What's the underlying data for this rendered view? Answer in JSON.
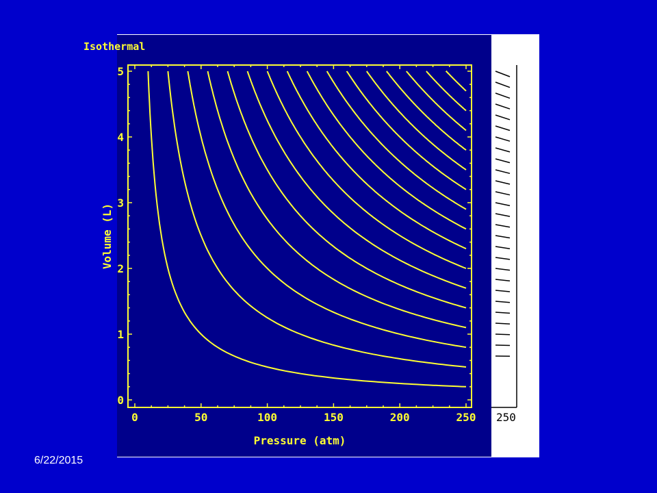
{
  "slide": {
    "date": "6/22/2015",
    "background_color": "#0000cc"
  },
  "chart_data": {
    "type": "line",
    "title": "Isothermal",
    "xlabel": "Pressure (atm)",
    "ylabel": "Volume (L)",
    "xlim": [
      0,
      250
    ],
    "ylim": [
      0,
      5
    ],
    "x_ticks": [
      "0",
      "50",
      "100",
      "150",
      "200",
      "250"
    ],
    "y_ticks": [
      "0",
      "1",
      "2",
      "3",
      "4",
      "5"
    ],
    "side_panel_tick": "250",
    "relation": "P × V = constant",
    "series": [
      {
        "pv_constant": 50
      },
      {
        "pv_constant": 125
      },
      {
        "pv_constant": 200
      },
      {
        "pv_constant": 275
      },
      {
        "pv_constant": 350
      },
      {
        "pv_constant": 425
      },
      {
        "pv_constant": 500
      },
      {
        "pv_constant": 575
      },
      {
        "pv_constant": 650
      },
      {
        "pv_constant": 725
      },
      {
        "pv_constant": 800
      },
      {
        "pv_constant": 875
      },
      {
        "pv_constant": 950
      },
      {
        "pv_constant": 1025
      },
      {
        "pv_constant": 1100
      },
      {
        "pv_constant": 1175
      }
    ],
    "line_color": "#ffff33",
    "plot_background": "#00008b",
    "grid": false
  }
}
